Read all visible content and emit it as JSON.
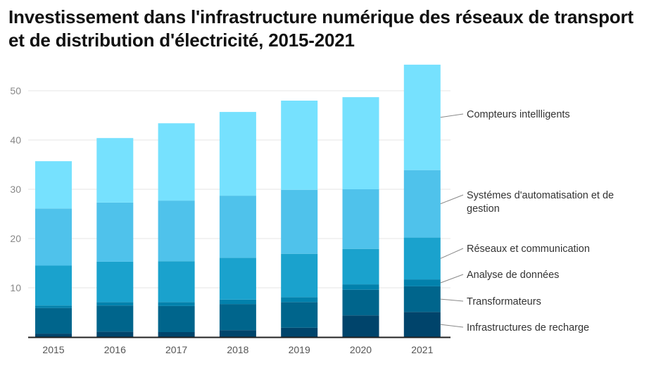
{
  "chart_data": {
    "type": "bar",
    "stacked": true,
    "title": "Investissement dans l'infrastructure numérique des réseaux de transport et de distribution d'électricité, 2015-2021",
    "xlabel": "",
    "ylabel": "",
    "ylim": [
      0,
      55
    ],
    "yticks": [
      10,
      20,
      30,
      40,
      50
    ],
    "grid": true,
    "legend_placement": "right",
    "categories": [
      "2015",
      "2016",
      "2017",
      "2018",
      "2019",
      "2020",
      "2021"
    ],
    "series": [
      {
        "name": "Infrastructures de recharge",
        "color": "#00446b",
        "values": [
          0.7,
          1.1,
          1.0,
          1.4,
          1.9,
          4.4,
          5.1
        ]
      },
      {
        "name": "Transformateurs",
        "color": "#00658c",
        "values": [
          5.2,
          5.3,
          5.3,
          5.3,
          5.2,
          5.2,
          5.2
        ]
      },
      {
        "name": "Analyse de données",
        "color": "#0281ac",
        "values": [
          0.5,
          0.7,
          0.8,
          0.9,
          1.0,
          1.1,
          1.4
        ]
      },
      {
        "name": "Réseaux et communication",
        "color": "#1aa2cd",
        "values": [
          8.1,
          8.2,
          8.3,
          8.5,
          8.8,
          7.2,
          8.5
        ]
      },
      {
        "name": "Systémes d'automatisation et de gestion",
        "name_lines": [
          "Systémes d'automatisation et de",
          "gestion"
        ],
        "color": "#4fc2eb",
        "values": [
          11.6,
          12.0,
          12.3,
          12.6,
          13.0,
          12.1,
          13.7
        ]
      },
      {
        "name": "Compteurs intellligents",
        "color": "#76e1fe",
        "values": [
          9.6,
          13.1,
          15.7,
          17.0,
          18.1,
          18.7,
          21.4
        ]
      }
    ]
  }
}
